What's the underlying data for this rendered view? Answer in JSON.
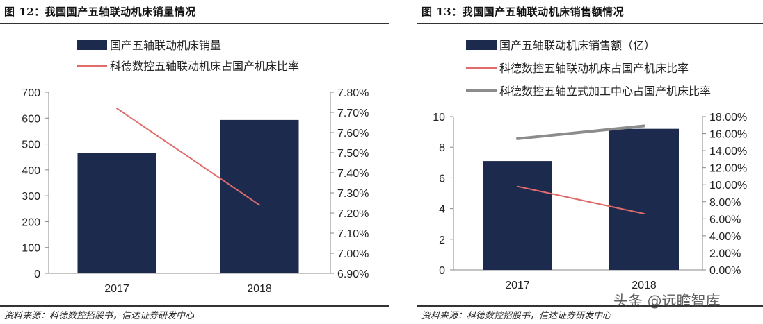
{
  "figures": [
    {
      "figure_title": "图 12：我国国产五轴联动机床销量情况",
      "source": "资料来源：科德数控招股书，信达证券研发中心"
    },
    {
      "figure_title": "图 13：我国国产五轴联动机床销售额情况",
      "source": "资料来源：科德数控招股书，信达证券研发中心"
    }
  ],
  "watermark": "头条 @远瞻智库",
  "colors": {
    "bar": "#1c2a4e",
    "line_red": "#e06b6b",
    "line_grey": "#8c8c8c"
  },
  "chart_data": [
    {
      "type": "bar+line",
      "categories": [
        "2017",
        "2018"
      ],
      "series": [
        {
          "name": "国产五轴联动机床销量",
          "kind": "bar",
          "axis": "left",
          "values": [
            465,
            593
          ]
        },
        {
          "name": "科德数控五轴联动机床占国产机床比率",
          "kind": "line",
          "axis": "right",
          "values": [
            7.72,
            7.24
          ]
        }
      ],
      "y_left": {
        "min": 0,
        "max": 700,
        "step": 100,
        "ticks": [
          "0",
          "100",
          "200",
          "300",
          "400",
          "500",
          "600",
          "700"
        ]
      },
      "y_right": {
        "min": 6.9,
        "max": 7.8,
        "step": 0.1,
        "ticks": [
          "6.90%",
          "7.00%",
          "7.10%",
          "7.20%",
          "7.30%",
          "7.40%",
          "7.50%",
          "7.60%",
          "7.70%",
          "7.80%"
        ]
      },
      "legend_position": "top-left",
      "grid": false
    },
    {
      "type": "bar+line",
      "categories": [
        "2017",
        "2018"
      ],
      "series": [
        {
          "name": "国产五轴联动机床销售额（亿）",
          "kind": "bar",
          "axis": "left",
          "values": [
            7.1,
            9.2
          ]
        },
        {
          "name": "科德数控五轴联动机床占国产机床比率",
          "kind": "line",
          "axis": "right",
          "values": [
            9.8,
            6.6
          ]
        },
        {
          "name": "科德数控五轴立式加工中心占国产机床比率",
          "kind": "line",
          "axis": "right",
          "values": [
            15.4,
            16.9
          ]
        }
      ],
      "y_left": {
        "min": 0,
        "max": 10,
        "step": 2,
        "ticks": [
          "0",
          "2",
          "4",
          "6",
          "8",
          "10"
        ]
      },
      "y_right": {
        "min": 0,
        "max": 18,
        "step": 2,
        "ticks": [
          "0.00%",
          "2.00%",
          "4.00%",
          "6.00%",
          "8.00%",
          "10.00%",
          "12.00%",
          "14.00%",
          "16.00%",
          "18.00%"
        ]
      },
      "legend_position": "top-left",
      "grid": false
    }
  ]
}
